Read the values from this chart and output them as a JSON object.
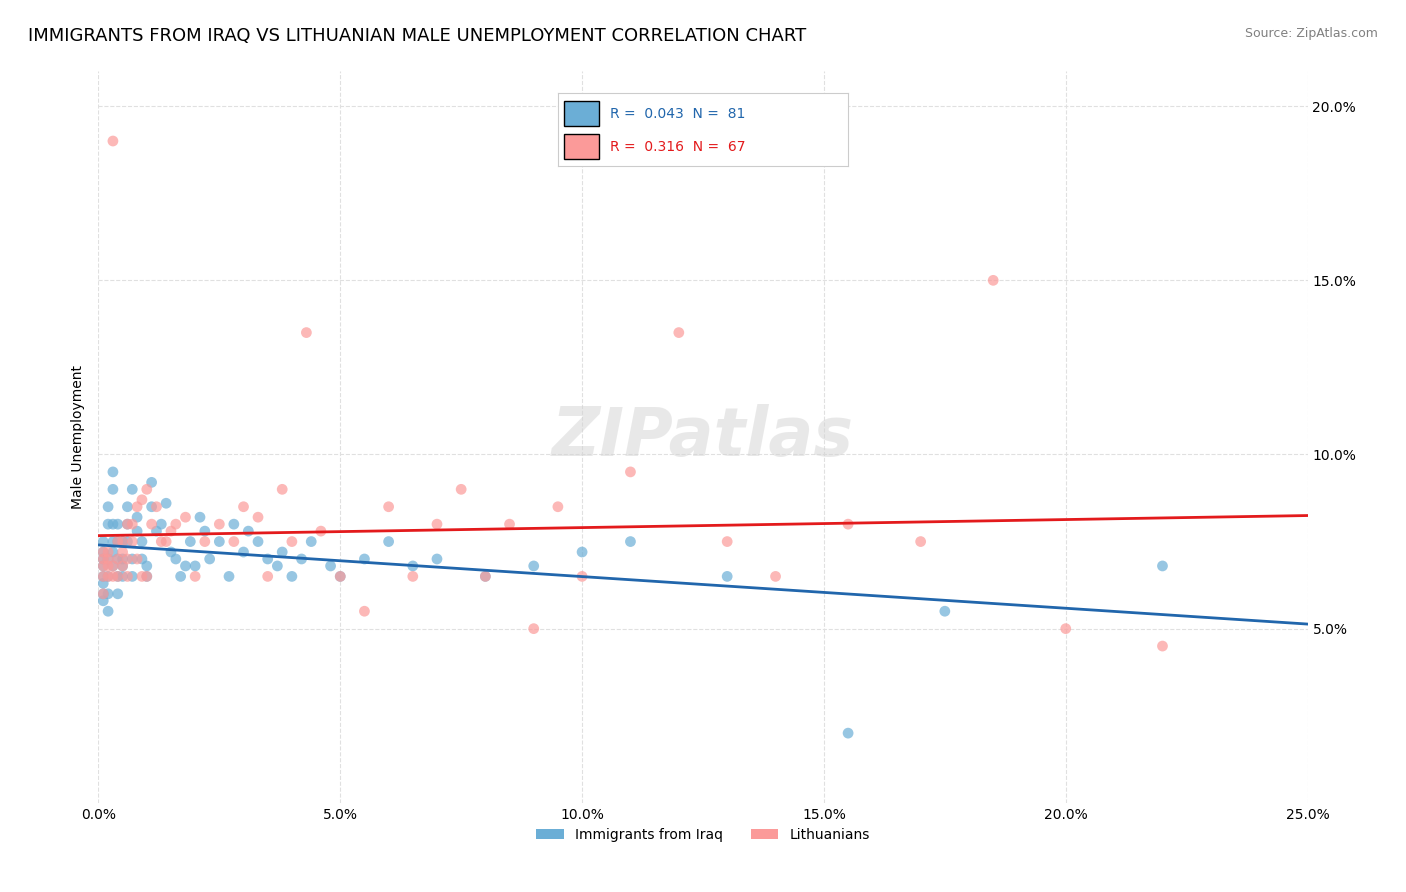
{
  "title": "IMMIGRANTS FROM IRAQ VS LITHUANIAN MALE UNEMPLOYMENT CORRELATION CHART",
  "source": "Source: ZipAtlas.com",
  "ylabel": "Male Unemployment",
  "xlabel_ticks": [
    "0.0%",
    "5.0%",
    "10.0%",
    "15.0%",
    "20.0%",
    "25.0%"
  ],
  "ylabel_ticks": [
    "5.0%",
    "10.0%",
    "15.0%",
    "20.0%"
  ],
  "xlim": [
    0.0,
    0.25
  ],
  "ylim": [
    0.0,
    0.21
  ],
  "watermark": "ZIPatlas",
  "legend_label1": "Immigrants from Iraq",
  "legend_label2": "Lithuanians",
  "legend_R1": "R =  0.043",
  "legend_N1": "N =  81",
  "legend_R2": "R =  0.316",
  "legend_N2": "N =  67",
  "color_iraq": "#6baed6",
  "color_lith": "#fb9a99",
  "trendline_color_iraq": "#2166ac",
  "trendline_color_lith": "#e31a1c",
  "scatter_iraq_x": [
    0.001,
    0.001,
    0.001,
    0.001,
    0.001,
    0.001,
    0.001,
    0.001,
    0.002,
    0.002,
    0.002,
    0.002,
    0.002,
    0.002,
    0.003,
    0.003,
    0.003,
    0.003,
    0.003,
    0.003,
    0.004,
    0.004,
    0.004,
    0.004,
    0.004,
    0.005,
    0.005,
    0.005,
    0.005,
    0.006,
    0.006,
    0.006,
    0.007,
    0.007,
    0.007,
    0.008,
    0.008,
    0.009,
    0.009,
    0.01,
    0.01,
    0.011,
    0.011,
    0.012,
    0.013,
    0.014,
    0.015,
    0.016,
    0.017,
    0.018,
    0.019,
    0.02,
    0.021,
    0.022,
    0.023,
    0.025,
    0.027,
    0.028,
    0.03,
    0.031,
    0.033,
    0.035,
    0.037,
    0.038,
    0.04,
    0.042,
    0.044,
    0.048,
    0.05,
    0.055,
    0.06,
    0.065,
    0.07,
    0.08,
    0.09,
    0.1,
    0.11,
    0.13,
    0.155,
    0.175,
    0.22
  ],
  "scatter_iraq_y": [
    0.06,
    0.065,
    0.07,
    0.075,
    0.068,
    0.072,
    0.063,
    0.058,
    0.07,
    0.065,
    0.06,
    0.055,
    0.08,
    0.085,
    0.08,
    0.09,
    0.095,
    0.075,
    0.068,
    0.072,
    0.065,
    0.07,
    0.075,
    0.06,
    0.08,
    0.065,
    0.07,
    0.075,
    0.068,
    0.08,
    0.085,
    0.075,
    0.07,
    0.065,
    0.09,
    0.078,
    0.082,
    0.07,
    0.075,
    0.068,
    0.065,
    0.092,
    0.085,
    0.078,
    0.08,
    0.086,
    0.072,
    0.07,
    0.065,
    0.068,
    0.075,
    0.068,
    0.082,
    0.078,
    0.07,
    0.075,
    0.065,
    0.08,
    0.072,
    0.078,
    0.075,
    0.07,
    0.068,
    0.072,
    0.065,
    0.07,
    0.075,
    0.068,
    0.065,
    0.07,
    0.075,
    0.068,
    0.07,
    0.065,
    0.068,
    0.072,
    0.075,
    0.065,
    0.02,
    0.055,
    0.068
  ],
  "scatter_lith_x": [
    0.001,
    0.001,
    0.001,
    0.001,
    0.001,
    0.002,
    0.002,
    0.002,
    0.002,
    0.003,
    0.003,
    0.003,
    0.004,
    0.004,
    0.004,
    0.005,
    0.005,
    0.005,
    0.006,
    0.006,
    0.006,
    0.007,
    0.007,
    0.008,
    0.008,
    0.009,
    0.009,
    0.01,
    0.01,
    0.011,
    0.012,
    0.013,
    0.014,
    0.015,
    0.016,
    0.018,
    0.02,
    0.022,
    0.025,
    0.028,
    0.03,
    0.033,
    0.035,
    0.038,
    0.04,
    0.043,
    0.046,
    0.05,
    0.055,
    0.06,
    0.065,
    0.07,
    0.075,
    0.08,
    0.085,
    0.09,
    0.095,
    0.1,
    0.11,
    0.12,
    0.13,
    0.14,
    0.155,
    0.17,
    0.185,
    0.2,
    0.22
  ],
  "scatter_lith_y": [
    0.06,
    0.065,
    0.07,
    0.072,
    0.068,
    0.065,
    0.068,
    0.072,
    0.07,
    0.065,
    0.068,
    0.19,
    0.07,
    0.075,
    0.065,
    0.068,
    0.072,
    0.075,
    0.065,
    0.07,
    0.08,
    0.075,
    0.08,
    0.07,
    0.085,
    0.065,
    0.087,
    0.065,
    0.09,
    0.08,
    0.085,
    0.075,
    0.075,
    0.078,
    0.08,
    0.082,
    0.065,
    0.075,
    0.08,
    0.075,
    0.085,
    0.082,
    0.065,
    0.09,
    0.075,
    0.135,
    0.078,
    0.065,
    0.055,
    0.085,
    0.065,
    0.08,
    0.09,
    0.065,
    0.08,
    0.05,
    0.085,
    0.065,
    0.095,
    0.135,
    0.075,
    0.065,
    0.08,
    0.075,
    0.15,
    0.05,
    0.045
  ],
  "grid_color": "#e0e0e0",
  "title_fontsize": 13,
  "axis_fontsize": 10,
  "tick_fontsize": 10
}
